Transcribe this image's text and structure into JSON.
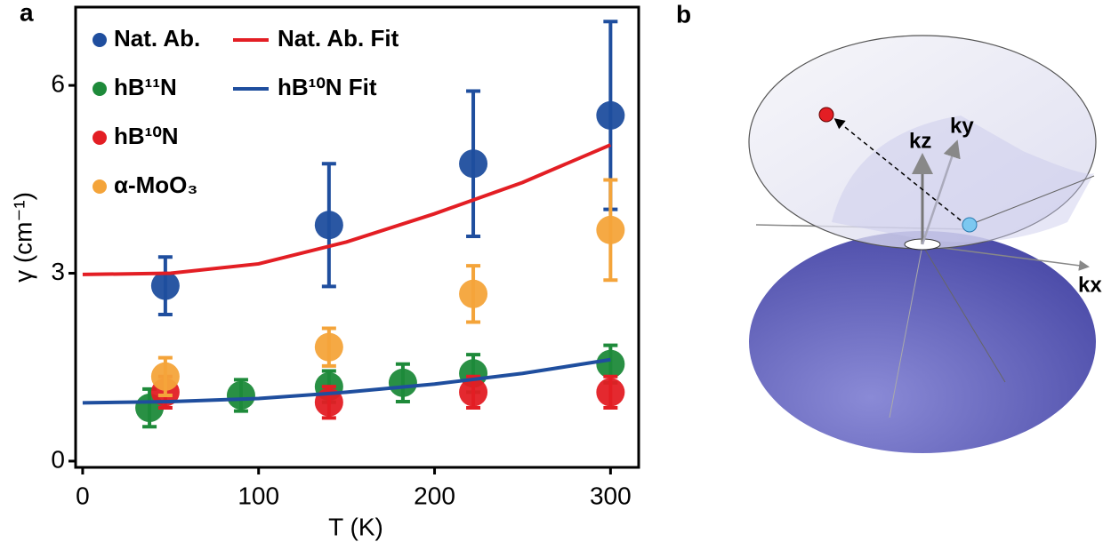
{
  "chart_data": {
    "type": "scatter",
    "label": "a",
    "x_label": "T (K)",
    "y_label": "γ (cm⁻¹)",
    "xlim": [
      -4,
      316
    ],
    "ylim": [
      -0.1,
      7.25
    ],
    "xticks": [
      0,
      100,
      200,
      300
    ],
    "yticks": [
      0,
      3,
      6
    ],
    "series": [
      {
        "name": "Nat. Ab.",
        "color": "#1f4e9e",
        "mode": "markers",
        "x": [
          47,
          140,
          222,
          300
        ],
        "values": [
          2.8,
          3.77,
          4.75,
          5.52
        ],
        "errors": [
          0.46,
          0.98,
          1.16,
          1.5
        ]
      },
      {
        "name": "hB¹¹N",
        "color": "#1e8a3a",
        "mode": "markers",
        "x": [
          38,
          90,
          140,
          182,
          222,
          300
        ],
        "values": [
          0.85,
          1.05,
          1.19,
          1.25,
          1.4,
          1.55
        ],
        "errors": [
          0.3,
          0.25,
          0.25,
          0.3,
          0.3,
          0.3
        ]
      },
      {
        "name": "hB¹⁰N",
        "color": "#e31e24",
        "mode": "markers",
        "x": [
          47,
          140,
          222,
          300
        ],
        "values": [
          1.1,
          0.94,
          1.1,
          1.1
        ],
        "errors": [
          0.25,
          0.25,
          0.25,
          0.25
        ]
      },
      {
        "name": "α-MoO₃",
        "color": "#f4a43a",
        "mode": "markers",
        "x": [
          47,
          140,
          222,
          300
        ],
        "values": [
          1.35,
          1.82,
          2.67,
          3.69
        ],
        "errors": [
          0.3,
          0.3,
          0.45,
          0.8
        ]
      },
      {
        "name": "Nat. Ab. Fit",
        "color": "#e31e24",
        "mode": "line",
        "x": [
          0,
          50,
          100,
          150,
          200,
          250,
          300
        ],
        "values": [
          2.98,
          3.0,
          3.15,
          3.5,
          3.95,
          4.45,
          5.05
        ]
      },
      {
        "name": "hB¹⁰N Fit",
        "color": "#1f4e9e",
        "mode": "line",
        "x": [
          0,
          50,
          100,
          150,
          200,
          250,
          300
        ],
        "values": [
          0.93,
          0.95,
          1.0,
          1.1,
          1.23,
          1.4,
          1.62
        ]
      }
    ]
  },
  "diagram": {
    "label": "b",
    "axes": {
      "x": "kx",
      "y": "ky",
      "z": "kz"
    }
  }
}
